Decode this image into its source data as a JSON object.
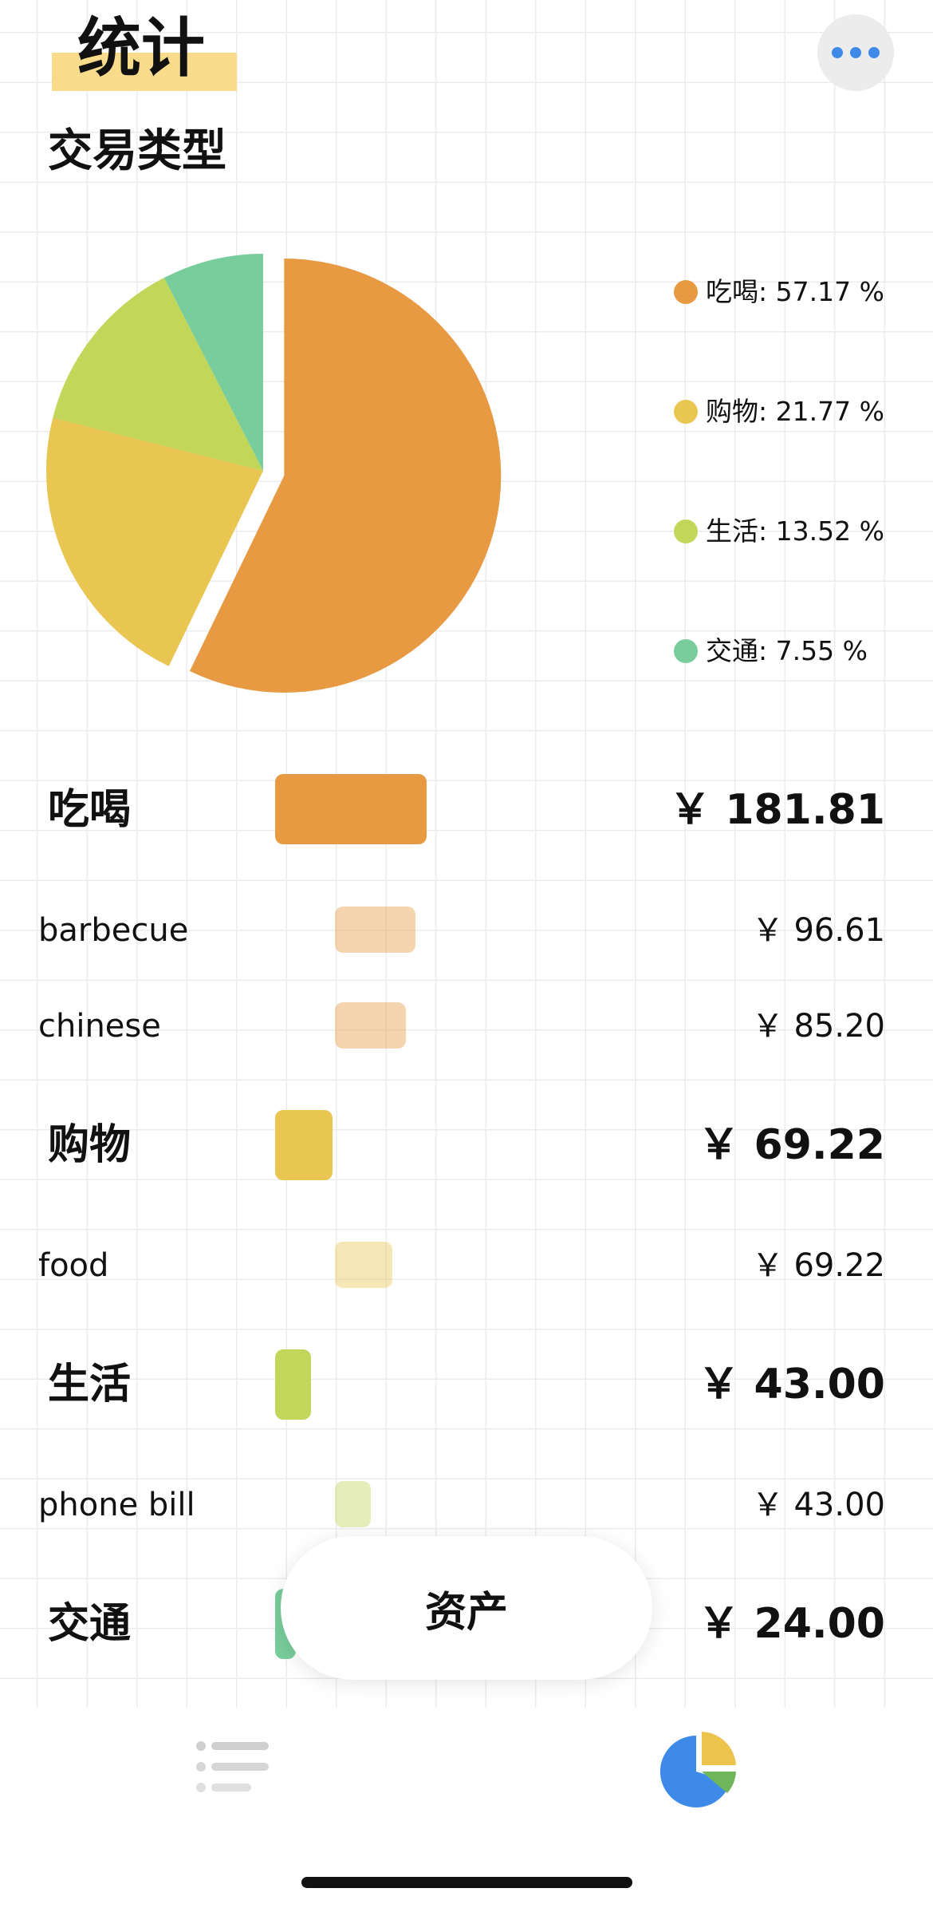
{
  "header": {
    "title": "统计",
    "more_button": "more-horizontal-icon"
  },
  "section": {
    "title": "交易类型"
  },
  "colors": {
    "food": "#e79a42",
    "shopping": "#e9c552",
    "living": "#c2d65a",
    "transport": "#79cd9c",
    "accent_blue": "#3e8ae8"
  },
  "legend": [
    {
      "label": "吃喝: 57.17 %",
      "color": "#e79a42"
    },
    {
      "label": "购物: 21.77 %",
      "color": "#e9c552"
    },
    {
      "label": "生活: 13.52 %",
      "color": "#c2d65a"
    },
    {
      "label": "交通: 7.55 %",
      "color": "#79cd9c"
    }
  ],
  "chart_data": {
    "type": "pie",
    "categories": [
      "吃喝",
      "购物",
      "生活",
      "交通"
    ],
    "values": [
      57.17,
      21.77,
      13.52,
      7.55
    ],
    "colors": [
      "#e79a42",
      "#e9c552",
      "#c2d65a",
      "#79cd9c"
    ],
    "exploded": [
      "吃喝"
    ],
    "legend_position": "right"
  },
  "categories": [
    {
      "label": "吃喝",
      "amount": "￥ 181.81",
      "value": 181.81,
      "color": "#e79a42",
      "items": [
        {
          "label": "barbecue",
          "amount": "￥ 96.61",
          "value": 96.61
        },
        {
          "label": "chinese",
          "amount": "￥ 85.20",
          "value": 85.2
        }
      ]
    },
    {
      "label": "购物",
      "amount": "￥ 69.22",
      "value": 69.22,
      "color": "#e9c552",
      "items": [
        {
          "label": "food",
          "amount": "￥ 69.22",
          "value": 69.22
        }
      ]
    },
    {
      "label": "生活",
      "amount": "￥ 43.00",
      "value": 43.0,
      "color": "#c2d65a",
      "items": [
        {
          "label": "phone bill",
          "amount": "￥ 43.00",
          "value": 43.0
        }
      ]
    },
    {
      "label": "交通",
      "amount": "￥ 24.00",
      "value": 24.0,
      "color": "#79cd9c",
      "items": []
    }
  ],
  "floating_button": {
    "label": "资产"
  },
  "tabbar": {
    "tabs": [
      {
        "icon": "list-icon",
        "active": false
      },
      {
        "icon": "pie-chart-icon",
        "active": true
      }
    ]
  }
}
